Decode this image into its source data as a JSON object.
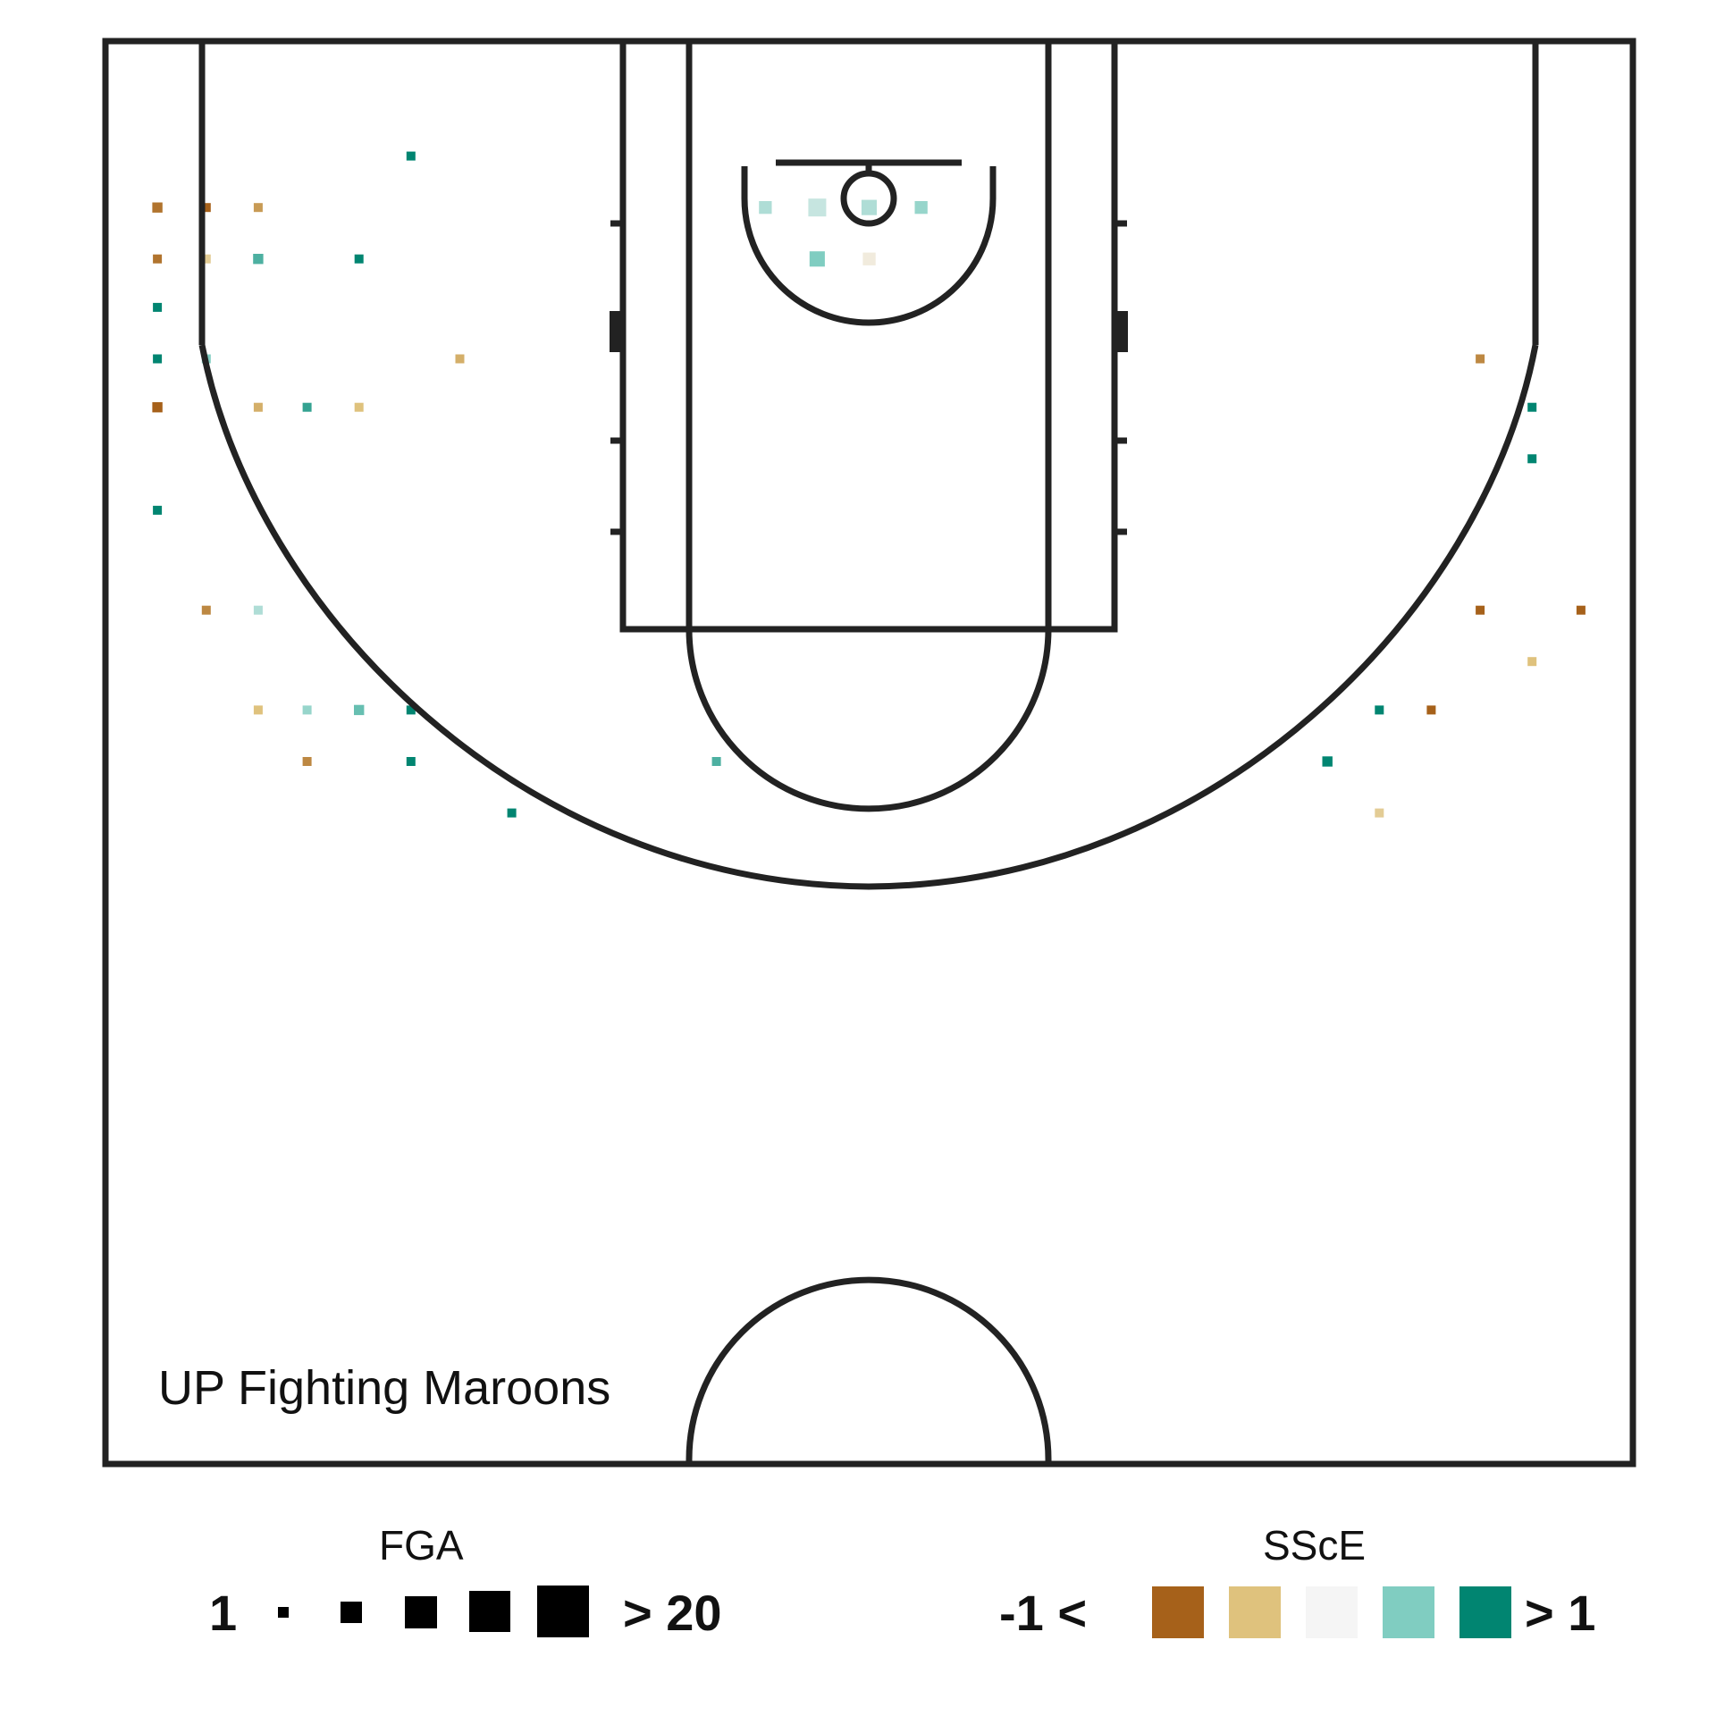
{
  "team": "UP Fighting Maroons",
  "legend": {
    "fga": {
      "title": "FGA",
      "min_label": "1",
      "max_label": "> 20",
      "steps": [
        1,
        5,
        10,
        15,
        20
      ],
      "color": "#000000"
    },
    "ssce": {
      "title": "SScE",
      "min_label": "-1 <",
      "max_label": "> 1",
      "colors": [
        "#a6611a",
        "#dfc27d",
        "#f5f5f5",
        "#80cdc1",
        "#018571"
      ]
    }
  },
  "chart_data": {
    "type": "heatmap",
    "title": "",
    "xlabel": "",
    "ylabel": "",
    "x_range": [
      -25,
      25
    ],
    "y_range": [
      0,
      47
    ],
    "cell_size_ft": 1.67,
    "size_encoding": "FGA",
    "color_encoding": "SScE",
    "color_scale": [
      "#a6611a",
      "#dfc27d",
      "#f5f5f5",
      "#80cdc1",
      "#018571"
    ],
    "points": [
      {
        "x": -16.7,
        "y": 45.0,
        "fga": 1,
        "ssce": 1.5
      },
      {
        "x": -15.0,
        "y": 48.4,
        "fga": 1,
        "ssce": 1.2
      },
      {
        "x": -13.4,
        "y": 41.7,
        "fga": 3,
        "ssce": -0.6
      },
      {
        "x": -23.3,
        "y": 46.7,
        "fga": 4,
        "ssce": -0.9
      },
      {
        "x": -20.0,
        "y": 46.7,
        "fga": 2,
        "ssce": -0.7
      },
      {
        "x": -21.7,
        "y": 46.7,
        "fga": 1,
        "ssce": -1.5
      },
      {
        "x": -23.3,
        "y": 45.0,
        "fga": 3,
        "ssce": -0.9
      },
      {
        "x": -21.7,
        "y": 45.0,
        "fga": 2,
        "ssce": -0.4
      },
      {
        "x": -20.0,
        "y": 45.0,
        "fga": 4,
        "ssce": 0.7
      },
      {
        "x": -23.3,
        "y": 41.7,
        "fga": 2,
        "ssce": 1.0
      },
      {
        "x": -23.3,
        "y": 40.1,
        "fga": 4,
        "ssce": -1.4
      },
      {
        "x": -21.7,
        "y": 41.7,
        "fga": 3,
        "ssce": 0.5
      },
      {
        "x": -23.3,
        "y": 43.4,
        "fga": 1,
        "ssce": 1.5
      },
      {
        "x": -23.3,
        "y": 36.7,
        "fga": 1,
        "ssce": 1.2
      },
      {
        "x": -20.0,
        "y": 40.1,
        "fga": 1,
        "ssce": -0.6
      },
      {
        "x": -18.4,
        "y": 40.1,
        "fga": 2,
        "ssce": 0.8
      },
      {
        "x": -16.7,
        "y": 40.1,
        "fga": 3,
        "ssce": -0.5
      },
      {
        "x": -21.7,
        "y": 33.4,
        "fga": 3,
        "ssce": -0.8
      },
      {
        "x": -20.0,
        "y": 33.4,
        "fga": 1,
        "ssce": 0.3
      },
      {
        "x": -20.0,
        "y": 30.1,
        "fga": 2,
        "ssce": -0.5
      },
      {
        "x": -18.4,
        "y": 30.1,
        "fga": 3,
        "ssce": 0.4
      },
      {
        "x": -16.7,
        "y": 30.1,
        "fga": 4,
        "ssce": 0.6
      },
      {
        "x": -15.0,
        "y": 30.1,
        "fga": 2,
        "ssce": 1.0
      },
      {
        "x": -18.4,
        "y": 28.4,
        "fga": 3,
        "ssce": -0.8
      },
      {
        "x": -15.0,
        "y": 28.4,
        "fga": 3,
        "ssce": 1.3
      },
      {
        "x": -11.7,
        "y": 26.7,
        "fga": 2,
        "ssce": 1.4
      },
      {
        "x": -5.0,
        "y": 28.4,
        "fga": 3,
        "ssce": 0.7
      },
      {
        "x": 16.7,
        "y": 30.1,
        "fga": 3,
        "ssce": 1.4
      },
      {
        "x": 15.0,
        "y": 28.4,
        "fga": 4,
        "ssce": 1.0
      },
      {
        "x": 20.0,
        "y": 33.4,
        "fga": 3,
        "ssce": -1.2
      },
      {
        "x": 23.3,
        "y": 33.4,
        "fga": 3,
        "ssce": -1.4
      },
      {
        "x": 21.7,
        "y": 31.7,
        "fga": 2,
        "ssce": -0.5
      },
      {
        "x": 18.4,
        "y": 30.1,
        "fga": 2,
        "ssce": -1.0
      },
      {
        "x": 16.7,
        "y": 26.7,
        "fga": 2,
        "ssce": -0.4
      },
      {
        "x": 21.7,
        "y": 38.4,
        "fga": 2,
        "ssce": 1.3
      },
      {
        "x": 20.0,
        "y": 41.7,
        "fga": 2,
        "ssce": -0.8
      },
      {
        "x": 21.7,
        "y": 40.1,
        "fga": 1,
        "ssce": 1.5
      },
      {
        "x": -1.7,
        "y": 46.7,
        "fga": 7,
        "ssce": 0.2
      },
      {
        "x": 0.0,
        "y": 46.7,
        "fga": 6,
        "ssce": 0.3
      },
      {
        "x": 1.7,
        "y": 46.7,
        "fga": 5,
        "ssce": 0.4
      },
      {
        "x": -3.4,
        "y": 46.7,
        "fga": 5,
        "ssce": 0.3
      },
      {
        "x": -1.7,
        "y": 45.0,
        "fga": 6,
        "ssce": 0.5
      },
      {
        "x": 0.0,
        "y": 45.0,
        "fga": 5,
        "ssce": -0.1
      }
    ]
  }
}
